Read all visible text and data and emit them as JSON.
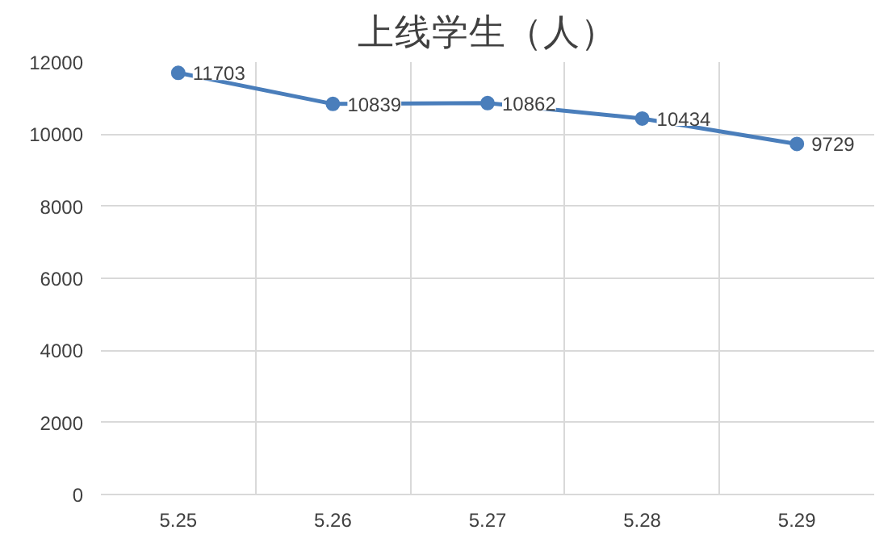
{
  "chart_data": {
    "type": "line",
    "title": "上线学生（人）",
    "categories": [
      "5.25",
      "5.26",
      "5.27",
      "5.28",
      "5.29"
    ],
    "series": [
      {
        "color": "#4a7ebb",
        "values": [
          11703,
          10839,
          10862,
          10434,
          9729
        ]
      }
    ],
    "ylim": [
      0,
      12000
    ],
    "yticks": [
      0,
      2000,
      4000,
      6000,
      8000,
      10000,
      12000
    ],
    "grid": true,
    "marker": "circle",
    "line_style": "solid",
    "data_labels": true
  }
}
